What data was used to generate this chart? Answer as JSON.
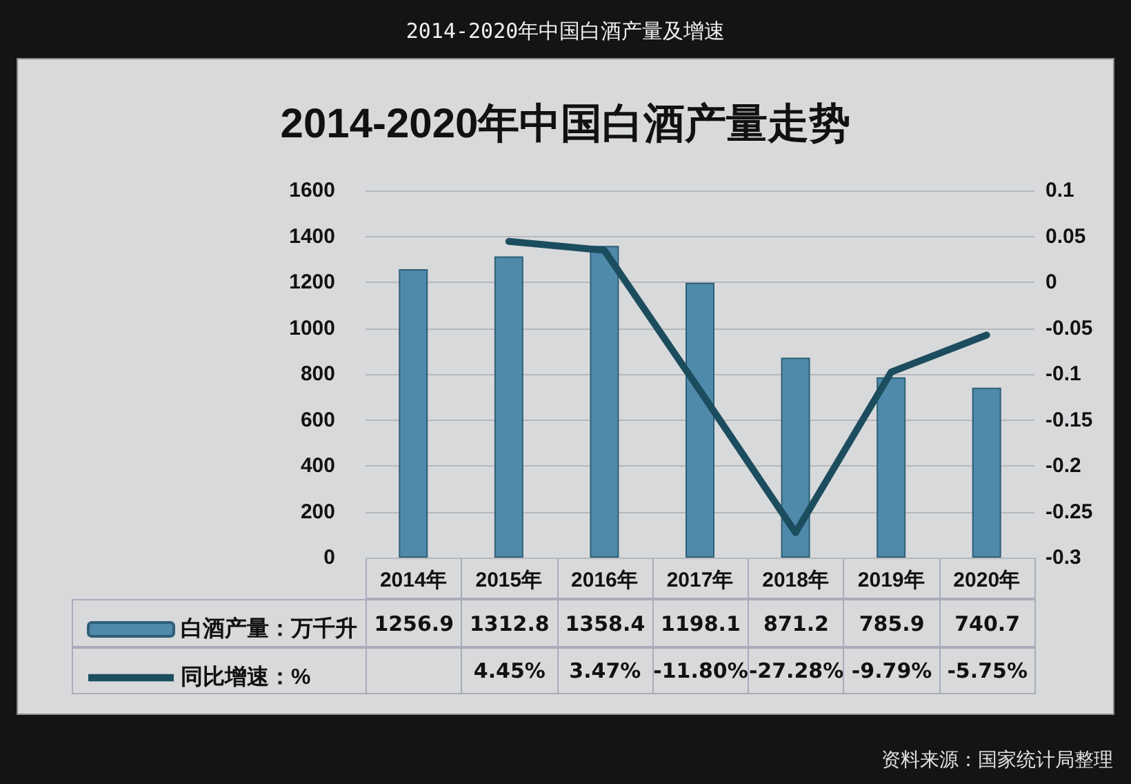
{
  "chart_data": {
    "type": "bar",
    "title": "2014-2020年中国白酒产量及增速",
    "subtitle": "2014-2020年中国白酒产量走势",
    "annotations": [
      "资料来源：国家统计局整理"
    ],
    "categories": [
      "2014年",
      "2015年",
      "2016年",
      "2017年",
      "2018年",
      "2019年",
      "2020年"
    ],
    "series": [
      {
        "name": "白酒产量：万千升",
        "color": "#4f8aaa",
        "values": [
          1256.9,
          1312.8,
          1358.4,
          1198.1,
          871.2,
          785.9,
          740.7
        ],
        "value_labels": [
          "1256.9",
          "1312.8",
          "1358.4",
          "1198.1",
          "871.2",
          "785.9",
          "740.7"
        ]
      },
      {
        "name": "同比增速：%",
        "type": "line",
        "axis": "y2",
        "color": "#1c4d5e",
        "values": [
          null,
          0.0445,
          0.0347,
          -0.118,
          -0.2728,
          -0.0979,
          -0.0575
        ],
        "value_labels": [
          null,
          "4.45%",
          "3.47%",
          "-11.80%",
          "-27.28%",
          "-9.79%",
          "-5.75%"
        ]
      }
    ],
    "ylim": [
      0,
      1600
    ],
    "yticks": [
      0,
      200,
      400,
      600,
      800,
      1000,
      1200,
      1400,
      1600
    ],
    "y2lim": [
      -0.3,
      0.1
    ],
    "y2ticks": [
      -0.3,
      -0.25,
      -0.2,
      -0.15,
      -0.1,
      -0.05,
      0,
      0.05,
      0.1
    ],
    "grid": "y",
    "legend": "bottom"
  }
}
